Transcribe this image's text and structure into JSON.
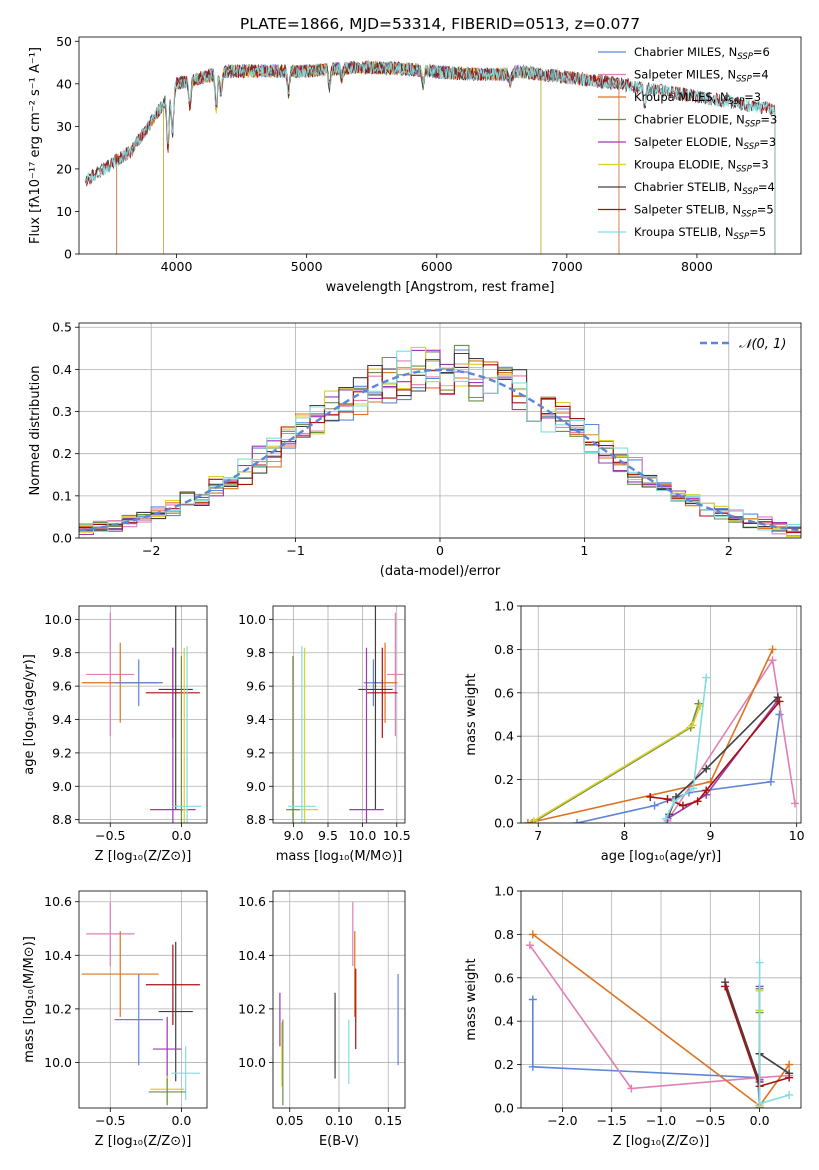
{
  "colors": {
    "chabrier_miles": "#5d86d6",
    "salpeter_miles": "#e17fb5",
    "kroupa_miles": "#dd7320",
    "chabrier_elodie": "#6c8f4b",
    "salpeter_elodie": "#9a39b4",
    "kroupa_elodie": "#dccf2e",
    "chabrier_stelib": "#404040",
    "salpeter_stelib": "#a81010",
    "kroupa_stelib": "#80dde0",
    "normal_curve": "#5d86d6"
  },
  "chart_data": [
    {
      "id": "spectrum",
      "type": "line",
      "title": "PLATE=1866, MJD=53314, FIBERID=0513, z=0.077",
      "xlabel": "wavelength [Angstrom, rest frame]",
      "ylabel": "Flux [fλ10⁻¹⁷ erg cm⁻² s⁻¹ A⁻¹]",
      "xlim": [
        3250,
        8800
      ],
      "ylim": [
        0,
        51
      ],
      "xticks": [
        4000,
        5000,
        6000,
        7000,
        8000
      ],
      "yticks": [
        0,
        10,
        20,
        30,
        40,
        50
      ],
      "grid": false,
      "legend_position": "top-right",
      "series": [
        {
          "name": "Chabrier MILES, N_SSP=6",
          "legend": "Chabrier MILES, N",
          "sub": "SSP",
          "suffix": "=6",
          "color": "chabrier_miles",
          "range": [
            3540,
            7400
          ]
        },
        {
          "name": "Salpeter MILES, N_SSP=4",
          "legend": "Salpeter MILES, N",
          "sub": "SSP",
          "suffix": "=4",
          "color": "salpeter_miles",
          "range": [
            3540,
            7400
          ]
        },
        {
          "name": "Kroupa MILES, N_SSP=3",
          "legend": "Kroupa MILES, N",
          "sub": "SSP",
          "suffix": "=3",
          "color": "kroupa_miles",
          "range": [
            3540,
            7400
          ]
        },
        {
          "name": "Chabrier ELODIE, N_SSP=3",
          "legend": "Chabrier ELODIE, N",
          "sub": "SSP",
          "suffix": "=3",
          "color": "chabrier_elodie",
          "range": [
            3900,
            6800
          ]
        },
        {
          "name": "Salpeter ELODIE, N_SSP=3",
          "legend": "Salpeter ELODIE, N",
          "sub": "SSP",
          "suffix": "=3",
          "color": "salpeter_elodie",
          "range": [
            3900,
            6800
          ]
        },
        {
          "name": "Kroupa ELODIE, N_SSP=3",
          "legend": "Kroupa ELODIE, N",
          "sub": "SSP",
          "suffix": "=3",
          "color": "kroupa_elodie",
          "range": [
            3900,
            6800
          ]
        },
        {
          "name": "Chabrier STELIB, N_SSP=4",
          "legend": "Chabrier STELIB, N",
          "sub": "SSP",
          "suffix": "=4",
          "color": "chabrier_stelib",
          "range": [
            3300,
            8600
          ]
        },
        {
          "name": "Salpeter STELIB, N_SSP=5",
          "legend": "Salpeter STELIB, N",
          "sub": "SSP",
          "suffix": "=5",
          "color": "salpeter_stelib",
          "range": [
            3300,
            8600
          ]
        },
        {
          "name": "Kroupa STELIB, N_SSP=5",
          "legend": "Kroupa STELIB, N",
          "sub": "SSP",
          "suffix": "=5",
          "color": "kroupa_stelib",
          "range": [
            3300,
            8600
          ]
        }
      ]
    },
    {
      "id": "residuals",
      "type": "histogram",
      "xlabel": "(data-model)/error",
      "ylabel": "Normed distribution",
      "xlim": [
        -2.5,
        2.5
      ],
      "ylim": [
        0,
        0.51
      ],
      "xticks": [
        -2,
        -1,
        0,
        1,
        2
      ],
      "yticks": [
        0.0,
        0.1,
        0.2,
        0.3,
        0.4,
        0.5
      ],
      "grid": true,
      "legend_position": "top-right",
      "bin_width": 0.1,
      "normal_label": "𝒩(0, 1)",
      "normal": {
        "mean": 0,
        "std": 1
      }
    },
    {
      "id": "age_vs_Z",
      "type": "errorbar",
      "xlabel": "Z [log₁₀(Z/Z⊙)]",
      "ylabel": "age  [log₁₀(age/yr)]",
      "xlim": [
        -0.72,
        0.18
      ],
      "ylim": [
        8.78,
        10.08
      ],
      "xticks": [
        -0.5,
        0.0
      ],
      "yticks": [
        8.8,
        9.0,
        9.2,
        9.4,
        9.6,
        9.8,
        10.0
      ],
      "grid": true,
      "points": [
        {
          "color": "salpeter_miles",
          "x": -0.5,
          "xerr": 0.17,
          "y": 9.67,
          "yerr": 0.37
        },
        {
          "color": "kroupa_miles",
          "x": -0.43,
          "xerr": 0.27,
          "y": 9.62,
          "yerr": 0.24
        },
        {
          "color": "chabrier_miles",
          "x": -0.3,
          "xerr": 0.17,
          "y": 9.62,
          "yerr": 0.14
        },
        {
          "color": "chabrier_stelib",
          "x": -0.04,
          "xerr": 0.12,
          "y": 9.58,
          "yerr": 0.72
        },
        {
          "color": "salpeter_stelib",
          "x": -0.06,
          "xerr": 0.19,
          "y": 9.56,
          "yerr": 0.27
        },
        {
          "color": "salpeter_elodie",
          "x": -0.06,
          "xerr": 0.16,
          "y": 8.86,
          "yerr": 0.97
        },
        {
          "color": "kroupa_elodie",
          "x": 0.02,
          "xerr": 0.02,
          "y": 8.86,
          "yerr": 0.97
        },
        {
          "color": "chabrier_elodie",
          "x": 0.0,
          "xerr": 0.01,
          "y": 8.86,
          "yerr": 0.92
        },
        {
          "color": "kroupa_stelib",
          "x": 0.04,
          "xerr": 0.1,
          "y": 8.88,
          "yerr": 0.96
        }
      ]
    },
    {
      "id": "age_vs_mass",
      "type": "errorbar",
      "xlabel": "mass [log₁₀(M/M⊙)]",
      "ylabel": "",
      "xlim": [
        8.7,
        10.62
      ],
      "ylim": [
        8.78,
        10.08
      ],
      "xticks": [
        9.0,
        9.5,
        10.0,
        10.5
      ],
      "yticks": [
        8.8,
        9.0,
        9.2,
        9.4,
        9.6,
        9.8,
        10.0
      ],
      "grid": true,
      "points": [
        {
          "color": "salpeter_miles",
          "x": 10.48,
          "xerr": 0.12,
          "y": 9.67,
          "yerr": 0.37
        },
        {
          "color": "kroupa_miles",
          "x": 10.33,
          "xerr": 0.18,
          "y": 9.62,
          "yerr": 0.24
        },
        {
          "color": "chabrier_miles",
          "x": 10.16,
          "xerr": 0.14,
          "y": 9.62,
          "yerr": 0.14
        },
        {
          "color": "chabrier_stelib",
          "x": 10.19,
          "xerr": 0.25,
          "y": 9.58,
          "yerr": 0.72
        },
        {
          "color": "salpeter_stelib",
          "x": 10.29,
          "xerr": 0.22,
          "y": 9.56,
          "yerr": 0.27
        },
        {
          "color": "salpeter_elodie",
          "x": 10.06,
          "xerr": 0.25,
          "y": 8.86,
          "yerr": 0.97
        },
        {
          "color": "kroupa_elodie",
          "x": 9.16,
          "xerr": 0.2,
          "y": 8.86,
          "yerr": 0.97
        },
        {
          "color": "chabrier_elodie",
          "x": 8.99,
          "xerr": 0.1,
          "y": 8.86,
          "yerr": 0.92
        },
        {
          "color": "kroupa_stelib",
          "x": 9.12,
          "xerr": 0.2,
          "y": 8.88,
          "yerr": 0.96
        }
      ]
    },
    {
      "id": "weight_vs_age",
      "type": "line",
      "xlabel": "age  [log₁₀(age/yr)]",
      "ylabel": "mass weight",
      "xlim": [
        6.8,
        10.05
      ],
      "ylim": [
        0,
        1.0
      ],
      "xticks": [
        7,
        8,
        9,
        10
      ],
      "yticks": [
        0.0,
        0.2,
        0.4,
        0.6,
        0.8,
        1.0
      ],
      "grid": true,
      "series": [
        {
          "color": "chabrier_miles",
          "points": [
            [
              7.45,
              0.0
            ],
            [
              8.35,
              0.08
            ],
            [
              8.75,
              0.14
            ],
            [
              9.7,
              0.19
            ],
            [
              9.8,
              0.5
            ]
          ]
        },
        {
          "color": "salpeter_miles",
          "points": [
            [
              8.5,
              0.01
            ],
            [
              9.72,
              0.75
            ],
            [
              9.98,
              0.09
            ]
          ]
        },
        {
          "color": "kroupa_miles",
          "points": [
            [
              6.88,
              0.0
            ],
            [
              9.0,
              0.19
            ],
            [
              9.72,
              0.8
            ]
          ]
        },
        {
          "color": "chabrier_elodie",
          "points": [
            [
              6.93,
              0.0
            ],
            [
              8.77,
              0.44
            ],
            [
              8.86,
              0.55
            ]
          ]
        },
        {
          "color": "salpeter_elodie",
          "points": [
            [
              8.5,
              0.02
            ],
            [
              8.95,
              0.13
            ],
            [
              9.77,
              0.56
            ]
          ]
        },
        {
          "color": "kroupa_elodie",
          "points": [
            [
              6.95,
              0.01
            ],
            [
              8.79,
              0.45
            ],
            [
              8.88,
              0.54
            ]
          ]
        },
        {
          "color": "chabrier_stelib",
          "points": [
            [
              8.52,
              0.04
            ],
            [
              8.6,
              0.12
            ],
            [
              8.95,
              0.25
            ],
            [
              9.78,
              0.58
            ]
          ]
        },
        {
          "color": "salpeter_stelib",
          "points": [
            [
              8.3,
              0.12
            ],
            [
              8.5,
              0.11
            ],
            [
              8.68,
              0.08
            ],
            [
              8.85,
              0.1
            ],
            [
              8.95,
              0.15
            ],
            [
              9.8,
              0.56
            ]
          ]
        },
        {
          "color": "kroupa_stelib",
          "points": [
            [
              8.48,
              0.02
            ],
            [
              8.58,
              0.1
            ],
            [
              8.8,
              0.16
            ],
            [
              8.95,
              0.67
            ]
          ]
        }
      ]
    },
    {
      "id": "mass_vs_Z",
      "type": "errorbar",
      "xlabel": "Z [log₁₀(Z/Z⊙)]",
      "ylabel": "mass [log₁₀(M/M⊙)]",
      "xlim": [
        -0.72,
        0.18
      ],
      "ylim": [
        9.83,
        10.64
      ],
      "xticks": [
        -0.5,
        0.0
      ],
      "yticks": [
        10.0,
        10.2,
        10.4,
        10.6
      ],
      "grid": true,
      "points": [
        {
          "color": "salpeter_miles",
          "x": -0.5,
          "xerr": 0.17,
          "y": 10.48,
          "yerr": 0.12
        },
        {
          "color": "kroupa_miles",
          "x": -0.43,
          "xerr": 0.27,
          "y": 10.33,
          "yerr": 0.16
        },
        {
          "color": "chabrier_miles",
          "x": -0.3,
          "xerr": 0.17,
          "y": 10.16,
          "yerr": 0.17
        },
        {
          "color": "salpeter_stelib",
          "x": -0.06,
          "xerr": 0.19,
          "y": 10.29,
          "yerr": 0.15
        },
        {
          "color": "chabrier_stelib",
          "x": -0.04,
          "xerr": 0.12,
          "y": 10.19,
          "yerr": 0.26
        },
        {
          "color": "salpeter_elodie",
          "x": -0.1,
          "xerr": 0.1,
          "y": 10.05,
          "yerr": 0.12
        },
        {
          "color": "kroupa_stelib",
          "x": 0.03,
          "xerr": 0.1,
          "y": 9.96,
          "yerr": 0.1
        },
        {
          "color": "kroupa_elodie",
          "x": -0.1,
          "xerr": 0.12,
          "y": 9.9,
          "yerr": 0.05
        },
        {
          "color": "chabrier_elodie",
          "x": -0.1,
          "xerr": 0.13,
          "y": 9.89,
          "yerr": 0.05
        }
      ]
    },
    {
      "id": "mass_vs_ebv",
      "type": "errorbar",
      "xlabel": "E(B-V)",
      "ylabel": "",
      "xlim": [
        0.033,
        0.167
      ],
      "ylim": [
        9.83,
        10.64
      ],
      "xticks": [
        0.05,
        0.1,
        0.15
      ],
      "yticks": [
        10.0,
        10.2,
        10.4,
        10.6
      ],
      "grid": true,
      "points": [
        {
          "color": "salpeter_miles",
          "x": 0.114,
          "xerr": 0,
          "y": 10.48,
          "yerr": 0.12
        },
        {
          "color": "kroupa_miles",
          "x": 0.116,
          "xerr": 0,
          "y": 10.33,
          "yerr": 0.16
        },
        {
          "color": "chabrier_miles",
          "x": 0.16,
          "xerr": 0,
          "y": 10.16,
          "yerr": 0.17
        },
        {
          "color": "salpeter_stelib",
          "x": 0.117,
          "xerr": 0,
          "y": 10.2,
          "yerr": 0.15
        },
        {
          "color": "chabrier_stelib",
          "x": 0.096,
          "xerr": 0,
          "y": 10.1,
          "yerr": 0.16
        },
        {
          "color": "salpeter_elodie",
          "x": 0.04,
          "xerr": 0,
          "y": 10.16,
          "yerr": 0.1
        },
        {
          "color": "kroupa_stelib",
          "x": 0.11,
          "xerr": 0,
          "y": 10.04,
          "yerr": 0.12
        },
        {
          "color": "kroupa_elodie",
          "x": 0.042,
          "xerr": 0,
          "y": 10.03,
          "yerr": 0.12
        },
        {
          "color": "chabrier_elodie",
          "x": 0.043,
          "xerr": 0,
          "y": 10.0,
          "yerr": 0.16
        }
      ]
    },
    {
      "id": "weight_vs_Z",
      "type": "line",
      "xlabel": "Z [log₁₀(Z/Z⊙)]",
      "ylabel": "mass weight",
      "xlim": [
        -2.42,
        0.42
      ],
      "ylim": [
        0,
        1.0
      ],
      "xticks": [
        -2.0,
        -1.5,
        -1.0,
        -0.5,
        0.0
      ],
      "yticks": [
        0.0,
        0.2,
        0.4,
        0.6,
        0.8,
        1.0
      ],
      "grid": true,
      "series": [
        {
          "color": "chabrier_miles",
          "points": [
            [
              -2.3,
              0.5
            ],
            [
              -2.3,
              0.19
            ],
            [
              -0.02,
              0.14
            ],
            [
              0.0,
              0.0
            ]
          ]
        },
        {
          "color": "salpeter_miles",
          "points": [
            [
              -2.33,
              0.75
            ],
            [
              -1.3,
              0.09
            ],
            [
              0.0,
              0.14
            ],
            [
              0.3,
              0.15
            ]
          ]
        },
        {
          "color": "kroupa_miles",
          "points": [
            [
              -2.3,
              0.8
            ],
            [
              0.0,
              0.01
            ],
            [
              0.3,
              0.2
            ]
          ]
        },
        {
          "color": "chabrier_elodie",
          "points": [
            [
              0.0,
              0.55
            ],
            [
              0.0,
              0.44
            ],
            [
              0.0,
              0.0
            ]
          ]
        },
        {
          "color": "salpeter_elodie",
          "points": [
            [
              0.0,
              0.13
            ],
            [
              0.0,
              0.02
            ],
            [
              0.0,
              0.56
            ]
          ]
        },
        {
          "color": "kroupa_elodie",
          "points": [
            [
              0.0,
              0.54
            ],
            [
              0.0,
              0.45
            ],
            [
              0.0,
              0.01
            ]
          ]
        },
        {
          "color": "chabrier_stelib",
          "points": [
            [
              -0.35,
              0.58
            ],
            [
              0.0,
              0.12
            ],
            [
              0.0,
              0.25
            ],
            [
              0.3,
              0.16
            ]
          ]
        },
        {
          "color": "salpeter_stelib",
          "points": [
            [
              -0.35,
              0.56
            ],
            [
              0.0,
              0.1
            ],
            [
              0.3,
              0.14
            ]
          ]
        },
        {
          "color": "kroupa_stelib",
          "points": [
            [
              0.0,
              0.67
            ],
            [
              0.0,
              0.02
            ],
            [
              0.3,
              0.06
            ]
          ]
        }
      ]
    }
  ]
}
